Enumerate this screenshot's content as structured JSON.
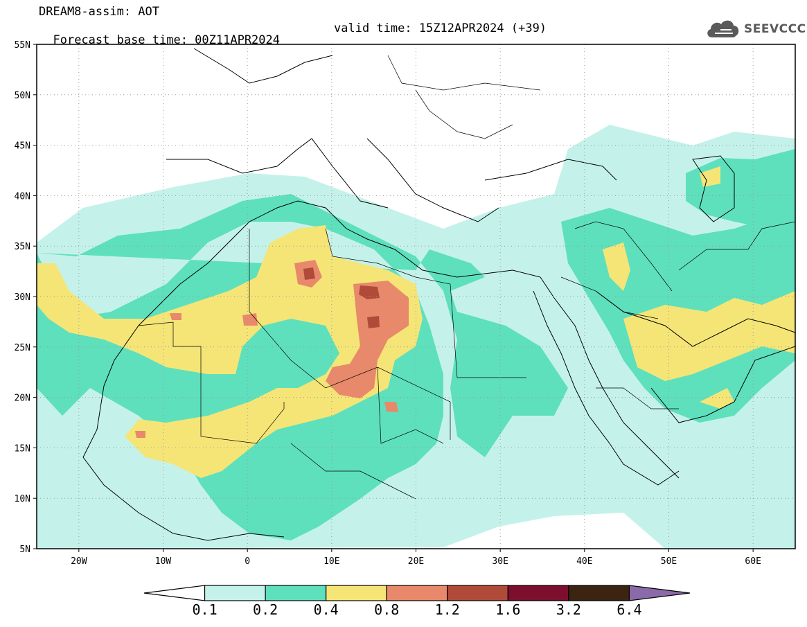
{
  "header": {
    "model_label": "DREAM8-assim: AOT",
    "base_time_label": "Forecast base time: 00Z11APR2024",
    "valid_time_label": "valid time: 15Z12APR2024 (+39)"
  },
  "logo": {
    "text": "SEEVCCC",
    "icon": "cloud-icon"
  },
  "map": {
    "lat_ticks": [
      "55N",
      "50N",
      "45N",
      "40N",
      "35N",
      "30N",
      "25N",
      "20N",
      "15N",
      "10N",
      "5N"
    ],
    "lon_ticks": [
      "20W",
      "10W",
      "0",
      "10E",
      "20E",
      "30E",
      "40E",
      "50E",
      "60E"
    ]
  },
  "colorbar": {
    "colors": [
      "#ffffff",
      "#c4f2ea",
      "#5ee0bc",
      "#f5e577",
      "#e8896b",
      "#b04b3a",
      "#7c0e2e",
      "#3c2412",
      "#8a6aa8"
    ],
    "labels": [
      "0.1",
      "0.2",
      "0.4",
      "0.8",
      "1.2",
      "1.6",
      "3.2",
      "6.4"
    ]
  }
}
